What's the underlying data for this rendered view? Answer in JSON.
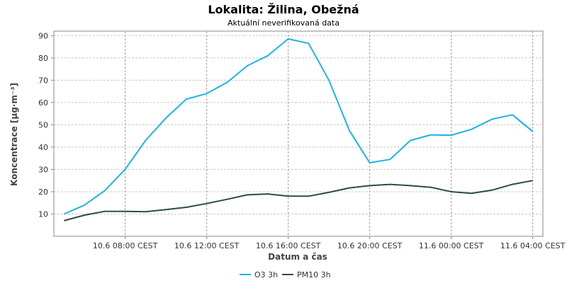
{
  "chart_data": {
    "type": "line",
    "title": "Lokalita: Žilina, Obežná",
    "subtitle": "Aktuální neverifikovaná data",
    "xlabel": "Datum a čas",
    "ylabel": "Koncentrace [µg·m⁻³]",
    "ylim": [
      0,
      92
    ],
    "yticks": [
      10,
      20,
      30,
      40,
      50,
      60,
      70,
      80,
      90
    ],
    "x_hours": [
      5,
      6,
      7,
      8,
      9,
      10,
      11,
      12,
      13,
      14,
      15,
      16,
      17,
      18,
      19,
      20,
      21,
      22,
      23,
      24,
      25,
      26,
      27,
      28
    ],
    "xticks": [
      {
        "hour": 8,
        "label": "10.6 08:00 CEST"
      },
      {
        "hour": 12,
        "label": "10.6 12:00 CEST"
      },
      {
        "hour": 16,
        "label": "10.6 16:00 CEST"
      },
      {
        "hour": 20,
        "label": "10.6 20:00 CEST"
      },
      {
        "hour": 24,
        "label": "11.6 00:00 CEST"
      },
      {
        "hour": 28,
        "label": "11.6 04:00 CEST"
      }
    ],
    "grid": true,
    "legend_position": "bottom",
    "series": [
      {
        "name": "O3 3h",
        "color": "#1bb4e8",
        "values": [
          10,
          14,
          20.5,
          30,
          43,
          53,
          61.5,
          64,
          69,
          76.5,
          81,
          88.5,
          86.5,
          70,
          47.5,
          33,
          34.5,
          43,
          45.5,
          45.3,
          48,
          52.5,
          54.5,
          47
        ]
      },
      {
        "name": "PM10 3h",
        "color": "#2a4a50",
        "values": [
          7,
          9.5,
          11.2,
          11.2,
          11,
          12,
          13,
          14.7,
          16.6,
          18.6,
          19,
          18,
          18,
          19.7,
          21.7,
          22.7,
          23.3,
          22.7,
          22,
          20,
          19.3,
          20.7,
          23.3,
          25
        ]
      }
    ]
  }
}
